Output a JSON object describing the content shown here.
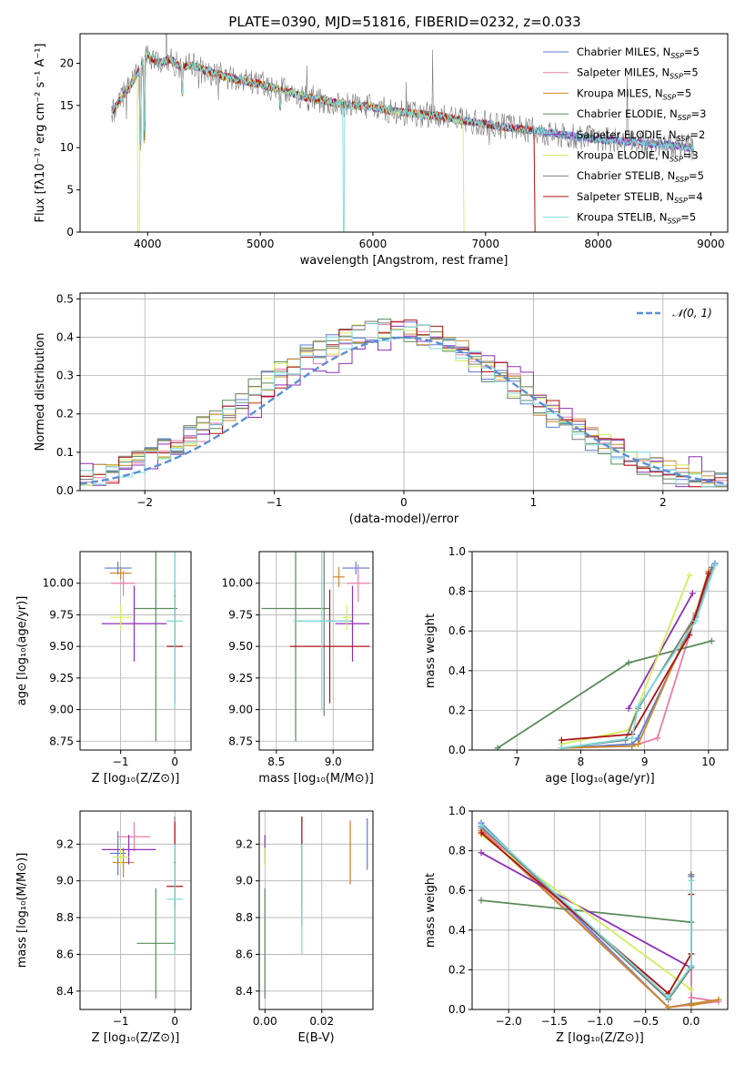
{
  "figure": {
    "title": "PLATE=0390, MJD=51816, FIBERID=0232, z=0.033"
  },
  "models": [
    {
      "name": "Chabrier MILES",
      "nssp": "5",
      "color": "#5b7bd5"
    },
    {
      "name": "Salpeter MILES",
      "nssp": "5",
      "color": "#e87da8"
    },
    {
      "name": "Kroupa MILES",
      "nssp": "5",
      "color": "#c98a2c"
    },
    {
      "name": "Chabrier ELODIE",
      "nssp": "3",
      "color": "#5a8a5a"
    },
    {
      "name": "Salpeter ELODIE",
      "nssp": "2",
      "color": "#8e2fb8"
    },
    {
      "name": "Kroupa ELODIE",
      "nssp": "3",
      "color": "#d4ec5a"
    },
    {
      "name": "Chabrier STELIB",
      "nssp": "5",
      "color": "#7a7a7a"
    },
    {
      "name": "Salpeter STELIB",
      "nssp": "4",
      "color": "#b01010"
    },
    {
      "name": "Kroupa STELIB",
      "nssp": "5",
      "color": "#7ddcd8"
    }
  ],
  "chart_data": [
    {
      "id": "spectrum",
      "type": "line",
      "xlabel": "wavelength [Angstrom, rest frame]",
      "ylabel": "Flux [fλ10⁻¹⁷ erg cm⁻² s⁻¹ A⁻¹]",
      "xlim": [
        3400,
        9150
      ],
      "ylim": [
        0,
        23.5
      ],
      "xticks": [
        4000,
        5000,
        6000,
        7000,
        8000,
        9000
      ],
      "yticks": [
        0,
        5,
        10,
        15,
        20
      ],
      "legend": "upper-right",
      "data": {
        "x": [
          3700,
          3800,
          3900,
          4000,
          4100,
          4200,
          4300,
          4400,
          4500,
          4600,
          4800,
          5000,
          5200,
          5400,
          5600,
          5800,
          6000,
          6200,
          6400,
          6600,
          6800,
          7000,
          7200,
          7400,
          7600,
          7800,
          8000,
          8200,
          8400,
          8600,
          8800
        ],
        "y": [
          14.5,
          16.5,
          18.5,
          21.0,
          20.0,
          20.5,
          19.5,
          19.8,
          19.2,
          18.8,
          18.0,
          17.5,
          16.8,
          16.0,
          15.5,
          15.0,
          14.8,
          14.3,
          14.0,
          13.7,
          13.2,
          12.8,
          12.4,
          12.1,
          11.7,
          11.3,
          11.0,
          10.8,
          10.6,
          10.3,
          10.0
        ]
      }
    },
    {
      "id": "residuals",
      "type": "histogram",
      "xlabel": "(data-model)/error",
      "ylabel": "Normed distribution",
      "xlim": [
        -2.5,
        2.5
      ],
      "ylim": [
        0,
        0.515
      ],
      "xticks": [
        -2,
        -1,
        0,
        1,
        2
      ],
      "yticks": [
        0.0,
        0.1,
        0.2,
        0.3,
        0.4,
        0.5
      ],
      "grid": true,
      "legend": "upper-right",
      "legend_label": "𝒩(0, 1)"
    },
    {
      "id": "age-vs-Z",
      "type": "errorbar",
      "xlabel": "Z [log₁₀(Z/Z⊙)]",
      "ylabel": "age  [log₁₀(age/yr)]",
      "xlim": [
        -1.75,
        0.3
      ],
      "ylim": [
        8.68,
        10.25
      ],
      "xticks": [
        -1,
        0
      ],
      "yticks": [
        8.75,
        9.0,
        9.25,
        9.5,
        9.75,
        10.0
      ],
      "grid": true,
      "points": [
        {
          "x": -1.05,
          "y": 10.12,
          "xerr": 0.25,
          "yerr": 0.05
        },
        {
          "x": -0.95,
          "y": 10.0,
          "xerr": 0.22,
          "yerr": 0.1
        },
        {
          "x": -1.0,
          "y": 10.08,
          "xerr": 0.2,
          "yerr": 0.05
        },
        {
          "x": -0.35,
          "y": 9.8,
          "xerr": 0.4,
          "yerr": 1.05
        },
        {
          "x": -0.75,
          "y": 9.68,
          "xerr": 0.6,
          "yerr": 0.3
        },
        {
          "x": -1.0,
          "y": 9.73,
          "xerr": 0.2,
          "yerr": 0.1
        },
        {
          "x": 0.0,
          "y": 9.9,
          "xerr": 0.02,
          "yerr": 0.4
        },
        {
          "x": 0.0,
          "y": 9.5,
          "xerr": 0.15,
          "yerr": 0.45
        },
        {
          "x": 0.0,
          "y": 9.7,
          "xerr": 0.15,
          "yerr": 0.7
        }
      ]
    },
    {
      "id": "age-vs-mass",
      "type": "errorbar",
      "xlabel": "mass [log₁₀(M/M⊙)]",
      "ylabel": "",
      "xlim": [
        8.35,
        9.35
      ],
      "ylim": [
        8.68,
        10.25
      ],
      "xticks": [
        8.5,
        9.0
      ],
      "yticks": [
        8.75,
        9.0,
        9.25,
        9.5,
        9.75,
        10.0
      ],
      "grid": true,
      "points": [
        {
          "x": 9.2,
          "y": 10.12,
          "xerr": 0.12,
          "yerr": 0.05
        },
        {
          "x": 9.22,
          "y": 10.0,
          "xerr": 0.1,
          "yerr": 0.15
        },
        {
          "x": 9.05,
          "y": 10.05,
          "xerr": 0.05,
          "yerr": 0.08
        },
        {
          "x": 8.67,
          "y": 9.8,
          "xerr": 0.3,
          "yerr": 1.05
        },
        {
          "x": 9.17,
          "y": 9.68,
          "xerr": 0.15,
          "yerr": 0.3
        },
        {
          "x": 9.12,
          "y": 9.73,
          "xerr": 0.04,
          "yerr": 0.1
        },
        {
          "x": 8.92,
          "y": 9.7,
          "xerr": 0.25,
          "yerr": 0.75
        },
        {
          "x": 8.97,
          "y": 9.5,
          "xerr": 0.35,
          "yerr": 0.45
        },
        {
          "x": 8.9,
          "y": 9.7,
          "xerr": 0.25,
          "yerr": 0.7
        }
      ]
    },
    {
      "id": "weight-vs-age",
      "type": "line",
      "xlabel": "age  [log₁₀(age/yr)]",
      "ylabel": "mass weight",
      "xlim": [
        6.3,
        10.3
      ],
      "ylim": [
        0,
        1.0
      ],
      "xticks": [
        7,
        8,
        9,
        10
      ],
      "yticks": [
        0.0,
        0.2,
        0.4,
        0.6,
        0.8,
        1.0
      ],
      "grid": true,
      "series": [
        {
          "x": [
            7.7,
            8.8,
            8.9,
            9.8,
            10.1
          ],
          "y": [
            0.01,
            0.03,
            0.06,
            0.67,
            0.94
          ]
        },
        {
          "x": [
            7.7,
            8.8,
            9.2,
            9.8,
            10.05
          ],
          "y": [
            0.01,
            0.02,
            0.06,
            0.68,
            0.91
          ]
        },
        {
          "x": [
            7.7,
            8.8,
            8.9,
            9.8,
            10.0
          ],
          "y": [
            0.01,
            0.02,
            0.03,
            0.69,
            0.9
          ]
        },
        {
          "x": [
            6.7,
            8.75,
            10.05
          ],
          "y": [
            0.01,
            0.44,
            0.55
          ]
        },
        {
          "x": [
            8.75,
            9.75
          ],
          "y": [
            0.21,
            0.79
          ]
        },
        {
          "x": [
            7.7,
            8.75,
            9.7
          ],
          "y": [
            0.03,
            0.1,
            0.88
          ]
        },
        {
          "x": [
            7.7,
            8.7,
            8.9,
            9.8,
            10.05
          ],
          "y": [
            0.01,
            0.05,
            0.21,
            0.68,
            0.92
          ]
        },
        {
          "x": [
            7.7,
            8.8,
            9.7,
            10.0
          ],
          "y": [
            0.05,
            0.08,
            0.58,
            0.89
          ]
        },
        {
          "x": [
            7.7,
            8.8,
            8.9,
            9.8,
            10.1
          ],
          "y": [
            0.01,
            0.06,
            0.22,
            0.65,
            0.93
          ]
        }
      ]
    },
    {
      "id": "mass-vs-Z",
      "type": "errorbar",
      "xlabel": "Z [log₁₀(Z/Z⊙)]",
      "ylabel": "mass [log₁₀(M/M⊙)]",
      "xlim": [
        -1.75,
        0.3
      ],
      "ylim": [
        8.3,
        9.38
      ],
      "xticks": [
        -1,
        0
      ],
      "yticks": [
        8.4,
        8.6,
        8.8,
        9.0,
        9.2
      ],
      "grid": true,
      "points": [
        {
          "x": -1.05,
          "y": 9.15,
          "xerr": 0.15,
          "yerr": 0.12
        },
        {
          "x": -0.75,
          "y": 9.24,
          "xerr": 0.3,
          "yerr": 0.08
        },
        {
          "x": -0.95,
          "y": 9.1,
          "xerr": 0.2,
          "yerr": 0.08
        },
        {
          "x": -0.35,
          "y": 8.66,
          "xerr": 0.35,
          "yerr": 0.3
        },
        {
          "x": -0.85,
          "y": 9.17,
          "xerr": 0.5,
          "yerr": 0.08
        },
        {
          "x": -1.0,
          "y": 9.13,
          "xerr": 0.15,
          "yerr": 0.05
        },
        {
          "x": 0.0,
          "y": 9.1,
          "xerr": 0.02,
          "yerr": 0.25
        },
        {
          "x": 0.0,
          "y": 8.97,
          "xerr": 0.15,
          "yerr": 0.35
        },
        {
          "x": 0.0,
          "y": 8.9,
          "xerr": 0.15,
          "yerr": 0.3
        }
      ]
    },
    {
      "id": "mass-vs-ebv",
      "type": "errorbar",
      "xlabel": "E(B-V)",
      "ylabel": "",
      "xlim": [
        -0.002,
        0.038
      ],
      "ylim": [
        8.3,
        9.38
      ],
      "xticks": [
        0.0,
        0.02
      ],
      "yticks": [
        8.4,
        8.6,
        8.8,
        9.0,
        9.2
      ],
      "grid": true,
      "points": [
        {
          "x": 0.036,
          "y": 9.2,
          "xerr": 0,
          "yerr": 0.14
        },
        {
          "x": 0.03,
          "y": 9.16,
          "xerr": 0,
          "yerr": 0.17
        },
        {
          "x": 0.03,
          "y": 9.15,
          "xerr": 0,
          "yerr": 0.17
        },
        {
          "x": 0.0,
          "y": 8.66,
          "xerr": 0,
          "yerr": 0.3
        },
        {
          "x": 0.0,
          "y": 9.17,
          "xerr": 0,
          "yerr": 0.08
        },
        {
          "x": 0.0,
          "y": 9.13,
          "xerr": 0,
          "yerr": 0.05
        },
        {
          "x": 0.013,
          "y": 9.1,
          "xerr": 0,
          "yerr": 0.25
        },
        {
          "x": 0.013,
          "y": 9.05,
          "xerr": 0,
          "yerr": 0.3
        },
        {
          "x": 0.013,
          "y": 8.9,
          "xerr": 0,
          "yerr": 0.3
        }
      ]
    },
    {
      "id": "weight-vs-Z",
      "type": "line",
      "xlabel": "Z [log₁₀(Z/Z⊙)]",
      "ylabel": "mass weight",
      "xlim": [
        -2.4,
        0.4
      ],
      "ylim": [
        0,
        1.0
      ],
      "xticks": [
        -2.0,
        -1.5,
        -1.0,
        -0.5,
        0.0
      ],
      "yticks": [
        0.0,
        0.2,
        0.4,
        0.6,
        0.8,
        1.0
      ],
      "grid": true,
      "series": [
        {
          "x": [
            -2.3,
            -0.25,
            0.0,
            0.0,
            0.0
          ],
          "y": [
            0.94,
            0.01,
            0.03,
            0.22,
            0.67
          ]
        },
        {
          "x": [
            -2.3,
            -0.25,
            0.3,
            0.0,
            0.0
          ],
          "y": [
            0.91,
            0.01,
            0.04,
            0.06,
            0.68
          ]
        },
        {
          "x": [
            -2.3,
            -0.25,
            0.3,
            0.0
          ],
          "y": [
            0.9,
            0.01,
            0.05,
            0.02
          ]
        },
        {
          "x": [
            -2.3,
            0.0
          ],
          "y": [
            0.55,
            0.44
          ]
        },
        {
          "x": [
            -2.3,
            0.0
          ],
          "y": [
            0.79,
            0.21
          ]
        },
        {
          "x": [
            -2.3,
            0.0
          ],
          "y": [
            0.88,
            0.1
          ]
        },
        {
          "x": [
            -2.3,
            -0.25,
            0.0,
            0.0
          ],
          "y": [
            0.92,
            0.05,
            0.21,
            0.68
          ]
        },
        {
          "x": [
            -2.3,
            -0.25,
            0.0,
            0.0
          ],
          "y": [
            0.89,
            0.08,
            0.28,
            0.58
          ]
        },
        {
          "x": [
            -2.3,
            -0.25,
            0.0,
            0.0
          ],
          "y": [
            0.93,
            0.06,
            0.22,
            0.65
          ]
        }
      ]
    }
  ]
}
